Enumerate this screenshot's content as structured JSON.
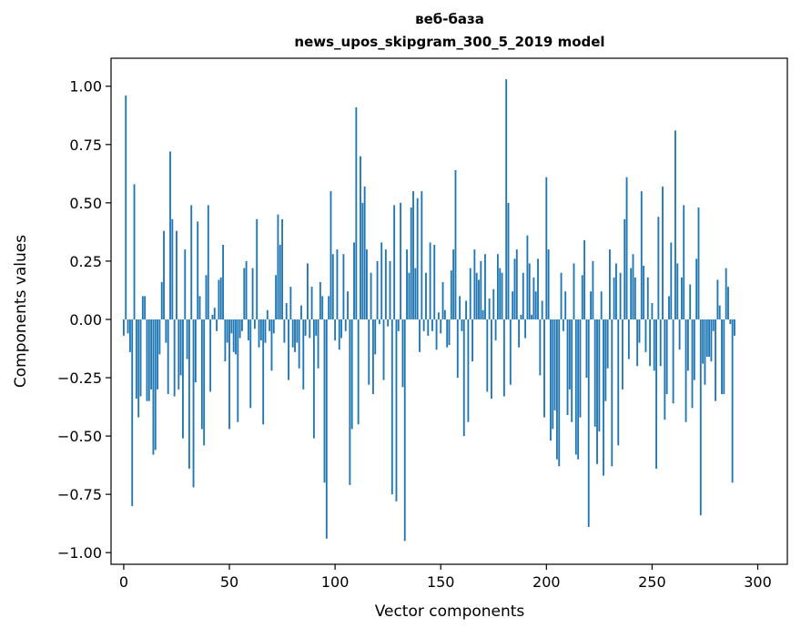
{
  "chart_data": {
    "type": "bar",
    "title_line1": "веб-база",
    "title_line2": "news_upos_skipgram_300_5_2019 model",
    "xlabel": "Vector components",
    "ylabel": "Components values",
    "xlim": [
      -6,
      314
    ],
    "ylim": [
      -1.05,
      1.12
    ],
    "x_ticks": [
      0,
      50,
      100,
      150,
      200,
      250,
      300
    ],
    "x_tick_labels": [
      "0",
      "50",
      "100",
      "150",
      "200",
      "250",
      "300"
    ],
    "y_ticks": [
      -1.0,
      -0.75,
      -0.5,
      -0.25,
      0.0,
      0.25,
      0.5,
      0.75,
      1.0
    ],
    "y_tick_labels": [
      "−1.00",
      "−0.75",
      "−0.50",
      "−0.25",
      "0.00",
      "0.25",
      "0.50",
      "0.75",
      "1.00"
    ],
    "grid": false,
    "bar_color": "#1f77b4",
    "values": [
      -0.07,
      0.96,
      -0.06,
      -0.14,
      -0.8,
      0.58,
      -0.34,
      -0.42,
      -0.33,
      0.1,
      0.1,
      -0.35,
      -0.35,
      -0.3,
      -0.58,
      -0.56,
      -0.3,
      -0.15,
      0.16,
      0.38,
      -0.1,
      -0.32,
      0.72,
      0.43,
      -0.33,
      0.38,
      -0.3,
      -0.24,
      -0.51,
      0.3,
      -0.17,
      -0.64,
      0.49,
      -0.72,
      -0.27,
      0.42,
      0.1,
      -0.47,
      -0.54,
      0.19,
      0.49,
      -0.31,
      0.02,
      0.05,
      -0.05,
      0.17,
      0.18,
      0.32,
      -0.18,
      -0.1,
      -0.47,
      -0.06,
      -0.14,
      -0.15,
      -0.44,
      -0.08,
      -0.05,
      0.22,
      0.25,
      -0.09,
      -0.38,
      0.22,
      -0.04,
      0.43,
      -0.12,
      -0.09,
      -0.45,
      -0.1,
      0.04,
      -0.05,
      -0.22,
      -0.06,
      0.19,
      0.45,
      0.32,
      0.43,
      -0.1,
      0.07,
      -0.26,
      0.14,
      -0.12,
      -0.14,
      -0.1,
      -0.21,
      0.06,
      -0.3,
      -0.07,
      0.24,
      -0.08,
      0.14,
      -0.51,
      -0.07,
      -0.21,
      0.16,
      0.1,
      -0.7,
      -0.94,
      0.1,
      0.55,
      0.28,
      -0.09,
      0.3,
      -0.13,
      -0.08,
      0.28,
      -0.05,
      0.12,
      -0.71,
      -0.47,
      0.33,
      0.91,
      -0.45,
      0.7,
      0.5,
      0.57,
      0.3,
      -0.28,
      0.2,
      -0.32,
      -0.15,
      0.25,
      -0.02,
      0.33,
      -0.26,
      0.3,
      -0.03,
      0.25,
      -0.75,
      0.49,
      -0.78,
      -0.05,
      0.5,
      -0.29,
      -0.95,
      0.3,
      0.2,
      0.48,
      0.55,
      0.22,
      0.52,
      -0.14,
      0.55,
      -0.05,
      0.2,
      -0.07,
      0.33,
      -0.05,
      0.32,
      -0.13,
      0.03,
      -0.06,
      0.16,
      0.04,
      -0.12,
      -0.11,
      0.21,
      0.3,
      0.64,
      -0.25,
      0.1,
      -0.05,
      -0.5,
      0.08,
      -0.44,
      0.22,
      -0.18,
      0.3,
      0.2,
      0.17,
      0.25,
      0.04,
      0.28,
      -0.31,
      0.09,
      -0.34,
      0.13,
      -0.09,
      0.28,
      0.22,
      0.2,
      -0.33,
      1.03,
      0.5,
      -0.28,
      0.12,
      0.26,
      0.3,
      -0.12,
      0.02,
      0.2,
      -0.08,
      0.36,
      0.24,
      0.02,
      0.18,
      0.12,
      0.26,
      -0.24,
      0.08,
      -0.42,
      0.61,
      0.3,
      -0.52,
      -0.47,
      -0.39,
      -0.6,
      -0.63,
      0.2,
      -0.05,
      0.12,
      -0.41,
      -0.3,
      -0.44,
      0.24,
      -0.58,
      -0.6,
      -0.42,
      0.19,
      0.34,
      -0.25,
      -0.89,
      0.12,
      0.25,
      -0.46,
      -0.62,
      -0.48,
      0.12,
      -0.67,
      -0.35,
      -0.21,
      0.3,
      -0.63,
      0.18,
      0.24,
      -0.54,
      0.2,
      -0.3,
      0.43,
      0.61,
      -0.17,
      0.22,
      0.28,
      0.18,
      -0.2,
      -0.1,
      0.55,
      0.23,
      -0.14,
      0.18,
      -0.2,
      0.07,
      -0.22,
      -0.64,
      0.44,
      -0.2,
      0.57,
      -0.43,
      -0.32,
      0.1,
      0.33,
      -0.36,
      0.81,
      0.24,
      -0.13,
      0.18,
      0.49,
      -0.44,
      -0.22,
      0.15,
      -0.38,
      -0.26,
      0.26,
      0.48,
      -0.84,
      -0.19,
      -0.28,
      -0.16,
      -0.16,
      -0.18,
      -0.05,
      -0.35,
      0.17,
      0.06,
      -0.32,
      -0.32,
      0.22,
      0.14,
      -0.02,
      -0.7,
      -0.07
    ]
  }
}
